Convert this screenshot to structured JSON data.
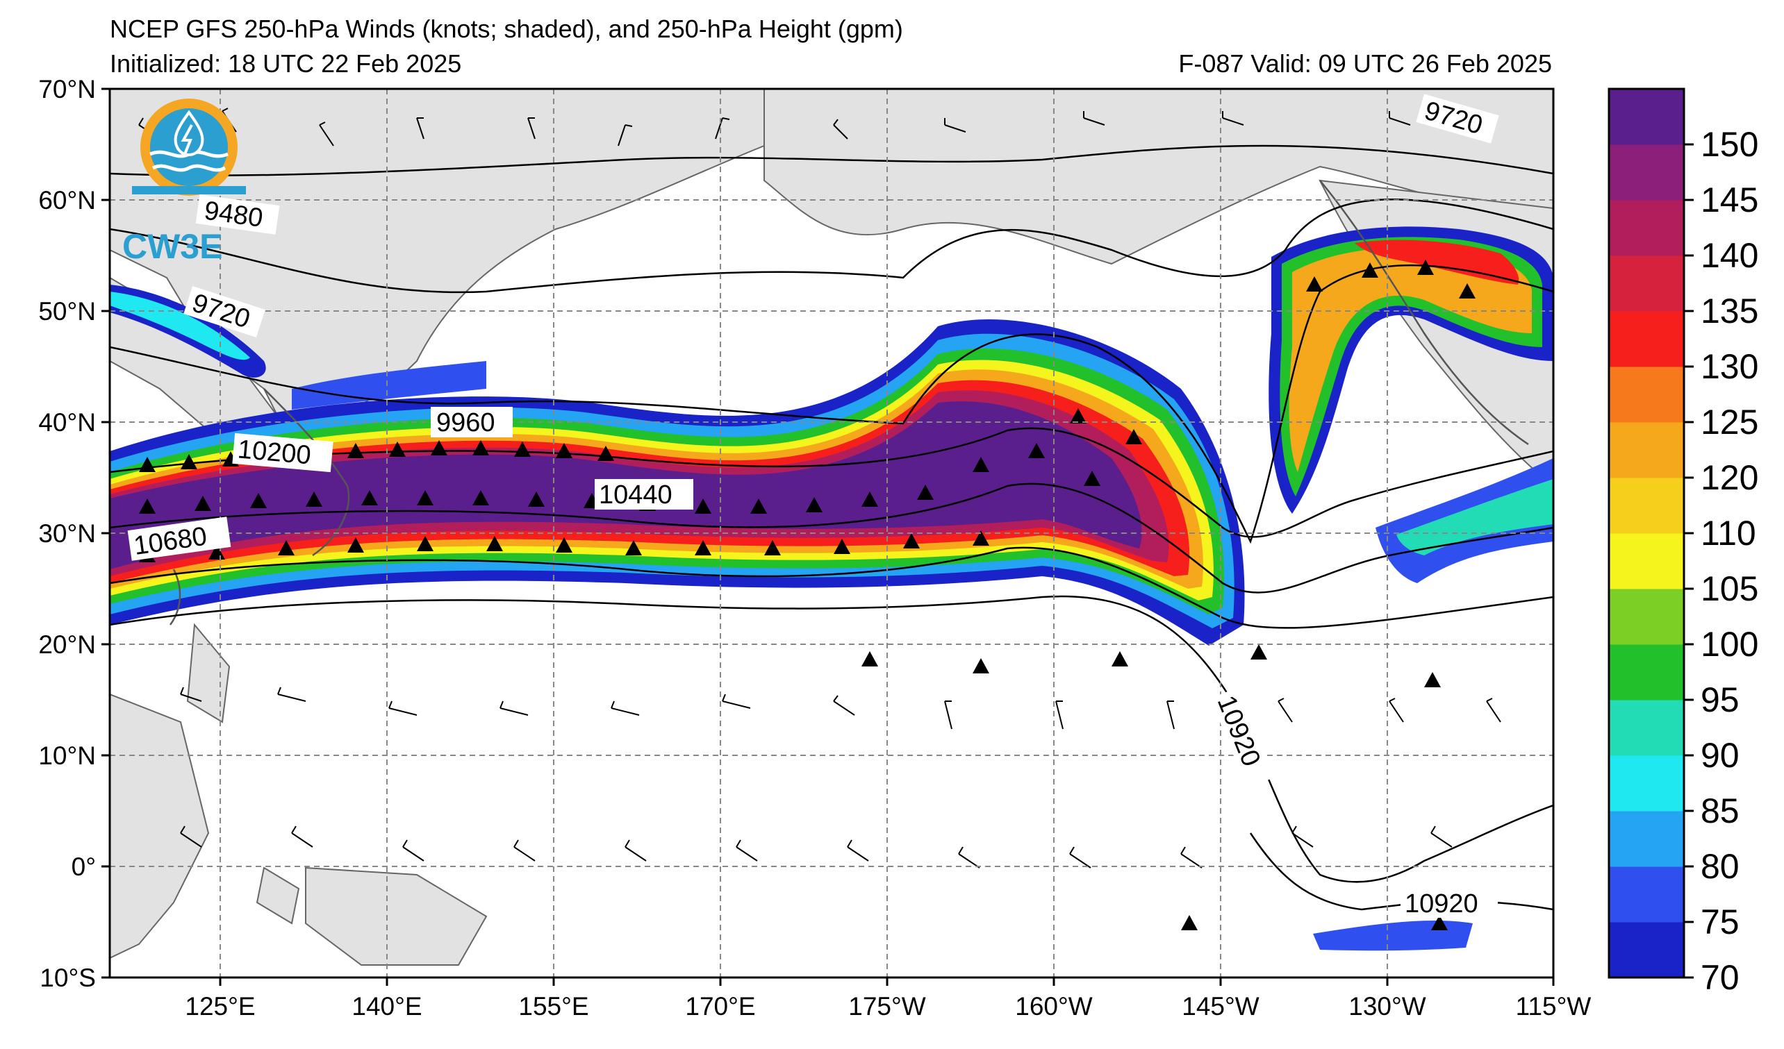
{
  "header": {
    "title": "NCEP GFS 250-hPa Winds (knots; shaded), and 250-hPa Height (gpm)",
    "initialized": "Initialized: 18 UTC 22 Feb 2025",
    "valid": "F-087  Valid: 09 UTC 26 Feb 2025"
  },
  "logo": {
    "text": "CW3E"
  },
  "axes": {
    "lat_labels": [
      "70°N",
      "60°N",
      "50°N",
      "40°N",
      "30°N",
      "20°N",
      "10°N",
      "0°",
      "10°S"
    ],
    "lon_labels": [
      "125°E",
      "140°E",
      "155°E",
      "170°E",
      "175°W",
      "160°W",
      "145°W",
      "130°W",
      "115°W"
    ]
  },
  "colorbar": {
    "ticks": [
      "70",
      "75",
      "80",
      "85",
      "90",
      "95",
      "100",
      "105",
      "110",
      "120",
      "125",
      "130",
      "135",
      "140",
      "145",
      "150"
    ],
    "colors": [
      "#1a23c7",
      "#2f4fef",
      "#24a4f2",
      "#1fe8f0",
      "#21dcb4",
      "#22c02a",
      "#7ccf24",
      "#f5f51d",
      "#f6ce1c",
      "#f6a81c",
      "#f67a1c",
      "#f61f1c",
      "#d6223d",
      "#b21e5c",
      "#8b1f7a",
      "#5a1f8c"
    ]
  },
  "contour_labels": {
    "h9480": "9480",
    "h9720_w": "9720",
    "h9720_ne": "9720",
    "h9960": "9960",
    "h10200": "10200",
    "h10440": "10440",
    "h10680": "10680",
    "h10920_a": "10920",
    "h10920_b": "10920"
  }
}
